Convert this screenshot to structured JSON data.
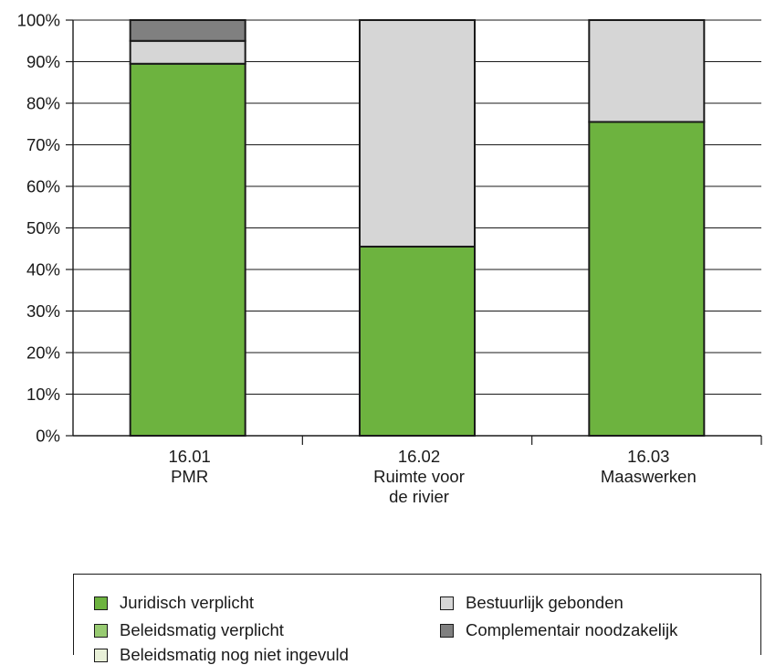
{
  "chart_data": {
    "type": "bar",
    "stacked": true,
    "categories": [
      "16.01\nPMR",
      "16.02\nRuimte voor\nde rivier",
      "16.03\nMaaswerken"
    ],
    "yticks": [
      "0%",
      "10%",
      "20%",
      "30%",
      "40%",
      "50%",
      "60%",
      "70%",
      "80%",
      "90%",
      "100%"
    ],
    "ylim": [
      0,
      100
    ],
    "grid": true,
    "series": [
      {
        "name": "Juridisch verplicht",
        "color": "#6db33f",
        "values": [
          89.5,
          45.5,
          75.5
        ]
      },
      {
        "name": "Beleidsmatig verplicht",
        "color": "#98cb72",
        "values": [
          0,
          0,
          0
        ]
      },
      {
        "name": "Beleidsmatig nog niet ingevuld",
        "color": "#e8f0d8",
        "values": [
          0,
          0,
          0
        ]
      },
      {
        "name": "Bestuurlijk gebonden",
        "color": "#d6d6d6",
        "values": [
          5.5,
          54.5,
          24.5
        ]
      },
      {
        "name": "Complementair noodzakelijk",
        "color": "#808080",
        "values": [
          5,
          0,
          0
        ]
      }
    ],
    "legend_position": "bottom"
  },
  "legend": {
    "items": [
      {
        "label": "Juridisch verplicht",
        "color": "#6db33f"
      },
      {
        "label": "Bestuurlijk gebonden",
        "color": "#d6d6d6"
      },
      {
        "label": "Beleidsmatig verplicht",
        "color": "#98cb72"
      },
      {
        "label": "Complementair noodzakelijk",
        "color": "#808080"
      },
      {
        "label": "Beleidsmatig nog niet ingevuld",
        "color": "#e8f0d8"
      }
    ]
  }
}
